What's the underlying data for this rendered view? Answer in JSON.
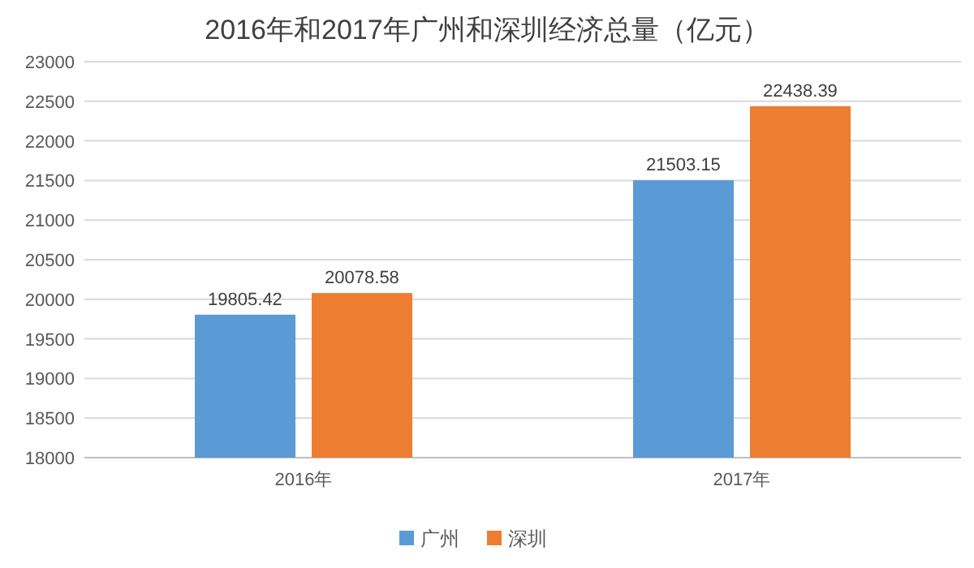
{
  "chart_data": {
    "type": "bar",
    "title": "2016年和2017年广州和深圳经济总量（亿元）",
    "categories": [
      "2016年",
      "2017年"
    ],
    "series": [
      {
        "name": "广州",
        "color": "#5b9bd5",
        "values": [
          19805.42,
          21503.15
        ]
      },
      {
        "name": "深圳",
        "color": "#ed7d31",
        "values": [
          20078.58,
          22438.39
        ]
      }
    ],
    "ylim": [
      18000,
      23000
    ],
    "yticks": [
      18000,
      18500,
      19000,
      19500,
      20000,
      20500,
      21000,
      21500,
      22000,
      22500,
      23000
    ],
    "grid": "y",
    "legend": "bottom",
    "data_labels": true
  }
}
